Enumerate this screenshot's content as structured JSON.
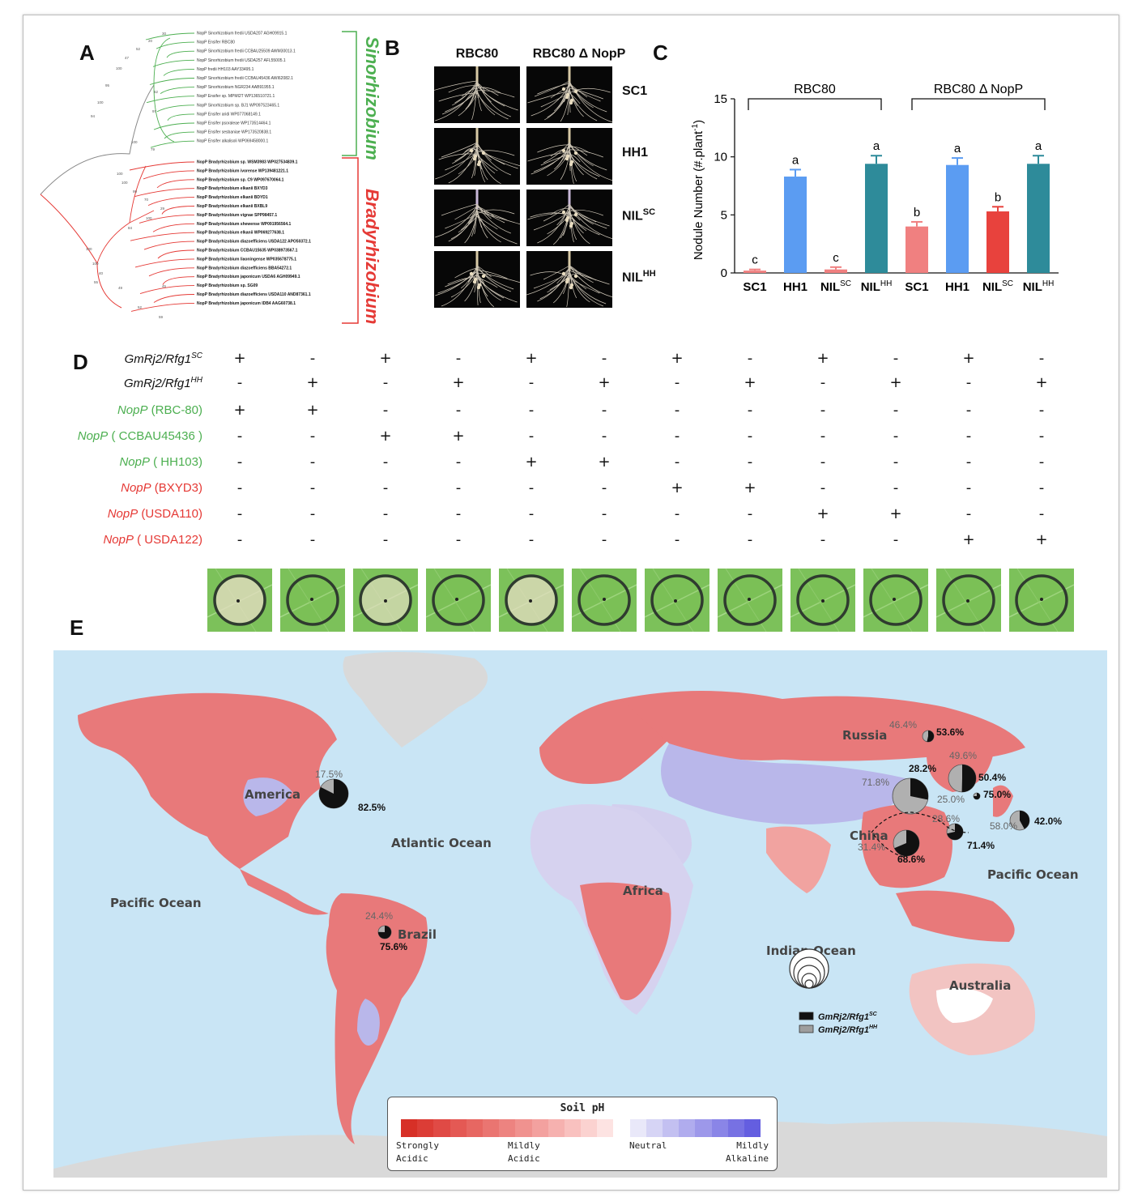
{
  "panels": {
    "a": "A",
    "b": "B",
    "c": "C",
    "d": "D",
    "e": "E"
  },
  "tree": {
    "clades": [
      "Sinorhizobium",
      "Bradyrhizobium"
    ],
    "sino_taxa": [
      "NopP Sinorhizobium fredii USDA207 AGH09915.1",
      "NopP Ensifer RBC80",
      "NopP Sinorhizobium fredii CCBAU25509 AWM30013.1",
      "NopP Sinorhizobium fredii USDA257 AFL55005.1",
      "NopP fredii HH103 AAY33495.1",
      "NopP Sinorhizobium fredii CCBAU45436 AWI62082.1",
      "NopP Sinorhizobium NGR234 AAB91955.1",
      "NopP Ensifer sp. MPMI2T WP136510721.1",
      "NopP Sinorhizobium sp. BJ1 WP097523465.1",
      "NopP Ensifer aridi WP077068149.1",
      "NopP Ensifer psoraleae WP173514464.1",
      "NopP Ensifer sesbaniae WP173520838.1",
      "NopP Ensifer alkalisoli WP069458000.1"
    ],
    "brady_taxa": [
      "NopP Bradyrhizobium sp. WSM3983 WP027534839.1",
      "NopP Bradyrhizobium ivorense WP139481221.1",
      "NopP Bradyrhizobium sp. C9 WP097670064.1",
      "NopP Bradyrhizobium elkanii BXYD3",
      "NopP Bradyrhizobium elkanii BDYD1",
      "NopP Bradyrhizobium elkanii BXBL9",
      "NopP Bradyrhizobium vignae SPP98457.1",
      "NopP Bradyrhizobium shewense WP091956564.1",
      "NopP Bradyrhizobium elkanii WP069277638.1",
      "NopP Bradyrhizobium diazoefficiens USDA122 APO50372.1",
      "NopP Bradyrhizobium CCBAU15635 WP038973567.1",
      "NopP Bradyrhizobium liaoningense WP035678775.1",
      "NopP Bradyrhizobium diazoefficiens BBA54272.1",
      "NopP Bradyrhizobium japonicum USDA6 AGH09949.1",
      "NopP Bradyrhizobium sp. SG09",
      "NopP Bradyrhizobium diazoefficiens USDA110 AND87361.1",
      "NopP Bradyrhizobium japonicum IDB4 AAG60738.1"
    ],
    "boot": [
      "30",
      "20",
      "52",
      "47",
      "100",
      "95",
      "62",
      "100",
      "97",
      "94",
      "100",
      "79",
      "100",
      "100",
      "99",
      "70",
      "29",
      "100",
      "84",
      "100",
      "100",
      "40",
      "55",
      "49",
      "45",
      "52",
      "59"
    ]
  },
  "panelB": {
    "cols": [
      "RBC80",
      "RBC80 Δ NopP"
    ],
    "rows": [
      "SC1",
      "HH1",
      "NIL",
      "NIL"
    ],
    "rows_sup": [
      "",
      "",
      "SC",
      "HH"
    ]
  },
  "chart_data": {
    "type": "bar",
    "groups": [
      "RBC80",
      "RBC80 Δ NopP"
    ],
    "categories": [
      "SC1",
      "HH1",
      "NIL",
      "NIL",
      "SC1",
      "HH1",
      "NIL",
      "NIL"
    ],
    "category_sup": [
      "",
      "",
      "SC",
      "HH",
      "",
      "",
      "SC",
      "HH"
    ],
    "values": [
      0.2,
      8.3,
      0.3,
      9.4,
      4.0,
      9.3,
      5.3,
      9.4
    ],
    "errors": [
      0.1,
      0.6,
      0.2,
      0.7,
      0.4,
      0.6,
      0.4,
      0.7
    ],
    "letters": [
      "c",
      "a",
      "c",
      "a",
      "b",
      "a",
      "b",
      "a"
    ],
    "colors": [
      "#f08080",
      "#5b9cf2",
      "#f08080",
      "#2e8b9a",
      "#f08080",
      "#5b9cf2",
      "#e8423d",
      "#2e8b9a"
    ],
    "ylabel": "Nodule Number (#.plant",
    "ylabel_sup": "-1",
    "ylabel_end": ")",
    "ylim": [
      0,
      15
    ],
    "yticks": [
      "0",
      "5",
      "10",
      "15"
    ]
  },
  "panelD": {
    "rows": [
      {
        "label": "GmRj2/Rfg1",
        "sup": "SC",
        "suffix": "",
        "color": "#111111",
        "italic_all": true,
        "signs": [
          "+",
          "-",
          "+",
          "-",
          "+",
          "-",
          "+",
          "-",
          "+",
          "-",
          "+",
          "-"
        ]
      },
      {
        "label": "GmRj2/Rfg1",
        "sup": "HH",
        "suffix": "",
        "color": "#111111",
        "italic_all": true,
        "signs": [
          "-",
          "+",
          "-",
          "+",
          "-",
          "+",
          "-",
          "+",
          "-",
          "+",
          "-",
          "+"
        ]
      },
      {
        "label": "NopP",
        "sup": "",
        "suffix": " (RBC-80)",
        "color": "#4caf50",
        "italic_all": false,
        "signs": [
          "+",
          "+",
          "-",
          "-",
          "-",
          "-",
          "-",
          "-",
          "-",
          "-",
          "-",
          "-"
        ]
      },
      {
        "label": "NopP",
        "sup": "",
        "suffix": " ( CCBAU45436 )",
        "color": "#4caf50",
        "italic_all": false,
        "signs": [
          "-",
          "-",
          "+",
          "+",
          "-",
          "-",
          "-",
          "-",
          "-",
          "-",
          "-",
          "-"
        ]
      },
      {
        "label": "NopP",
        "sup": "",
        "suffix": " ( HH103)",
        "color": "#4caf50",
        "italic_all": false,
        "signs": [
          "-",
          "-",
          "-",
          "-",
          "+",
          "+",
          "-",
          "-",
          "-",
          "-",
          "-",
          "-"
        ]
      },
      {
        "label": "NopP",
        "sup": "",
        "suffix": " (BXYD3)",
        "color": "#e53935",
        "italic_all": false,
        "signs": [
          "-",
          "-",
          "-",
          "-",
          "-",
          "-",
          "+",
          "+",
          "-",
          "-",
          "-",
          "-"
        ]
      },
      {
        "label": "NopP",
        "sup": "",
        "suffix": " (USDA110)",
        "color": "#e53935",
        "italic_all": false,
        "signs": [
          "-",
          "-",
          "-",
          "-",
          "-",
          "-",
          "-",
          "-",
          "+",
          "+",
          "-",
          "-"
        ]
      },
      {
        "label": "NopP",
        "sup": "",
        "suffix": " ( USDA122)",
        "color": "#e53935",
        "italic_all": false,
        "signs": [
          "-",
          "-",
          "-",
          "-",
          "-",
          "-",
          "-",
          "-",
          "-",
          "-",
          "+",
          "+"
        ]
      }
    ],
    "leaf_necrosis": [
      0.85,
      0.1,
      0.7,
      0.05,
      0.8,
      0.05,
      0.05,
      0.05,
      0.05,
      0.05,
      0.15,
      0.05
    ]
  },
  "map": {
    "oceans": [
      "Pacific Ocean",
      "Atlantic Ocean",
      "Indian Ocean",
      "Pacific Ocean"
    ],
    "regions": [
      "America",
      "Russia",
      "China",
      "Africa",
      "Brazil",
      "Australia"
    ],
    "pies": [
      {
        "sc": 82.5,
        "hh": 17.5,
        "sc_label": "82.5%",
        "hh_label": "17.5%"
      },
      {
        "sc": 53.6,
        "hh": 46.4,
        "sc_label": "53.6%",
        "hh_label": "46.4%"
      },
      {
        "sc": 50.4,
        "hh": 49.6,
        "sc_label": "50.4%",
        "hh_label": "49.6%"
      },
      {
        "sc": 28.2,
        "hh": 71.8,
        "sc_label": "28.2%",
        "hh_label": "71.8%"
      },
      {
        "sc": 75.0,
        "hh": 25.0,
        "sc_label": "75.0%",
        "hh_label": "25.0%"
      },
      {
        "sc": 42.0,
        "hh": 58.0,
        "sc_label": "42.0%",
        "hh_label": "58.0%"
      },
      {
        "sc": 71.4,
        "hh": 28.6,
        "sc_label": "71.4%",
        "hh_label": "28.6%"
      },
      {
        "sc": 68.6,
        "hh": 31.4,
        "sc_label": "68.6%",
        "hh_label": "31.4%"
      },
      {
        "sc": 75.6,
        "hh": 24.4,
        "sc_label": "75.6%",
        "hh_label": "24.4%"
      }
    ],
    "pie_legend": [
      {
        "label": "GmRj2/Rfg1",
        "sup": "SC",
        "color": "#111111"
      },
      {
        "label": "GmRj2/Rfg1",
        "sup": "HH",
        "color": "#9e9e9e"
      }
    ],
    "soil_legend": {
      "title": "Soil pH",
      "labels": [
        [
          "Strongly",
          "Acidic"
        ],
        [
          "Mildly",
          "Acidic"
        ],
        [
          "Neutral",
          ""
        ],
        [
          "Mildly",
          "Alkaline"
        ]
      ]
    }
  }
}
